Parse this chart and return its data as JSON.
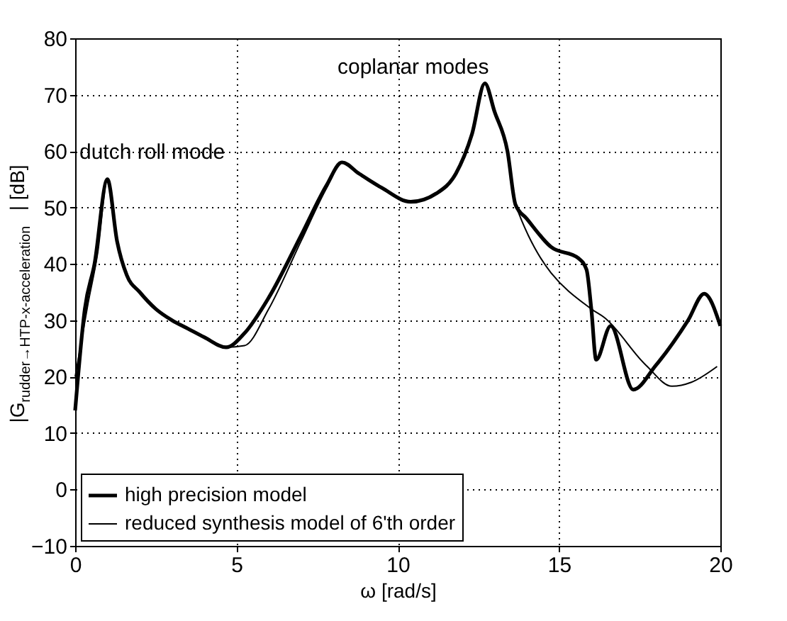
{
  "chart_data": {
    "type": "line",
    "xlabel": "ω [rad/s]",
    "ylabel": "|G$_{rudder→HTP-x-acceleration}$| [dB]",
    "xlim": [
      0,
      20
    ],
    "xticks": [
      0,
      5,
      10,
      15,
      20
    ],
    "ylim": [
      -10,
      80
    ],
    "yticks": [
      -10,
      0,
      10,
      20,
      30,
      40,
      50,
      60,
      70,
      80
    ],
    "grid": true,
    "legend": "bottom left",
    "line_style": "solid",
    "marker": "none",
    "annotations": [
      "dutch roll mode",
      "coplanar modes"
    ],
    "series": [
      {
        "name": "high precision model",
        "color": "#000000",
        "x": [
          0,
          0.3,
          0.6,
          1.0,
          1.3,
          1.6,
          2.0,
          2.5,
          3.0,
          3.5,
          4.0,
          4.68,
          5.25,
          6.0,
          7.0,
          7.8,
          8.27,
          8.8,
          9.5,
          10.4,
          11.2,
          11.8,
          12.3,
          12.7,
          13.0,
          13.4,
          13.65,
          14.0,
          14.75,
          15.6,
          15.85,
          16.0,
          16.15,
          16.6,
          17.3,
          18.0,
          19.0,
          19.5,
          20.0
        ],
        "values": [
          14,
          32,
          40,
          55,
          44,
          38,
          35,
          32,
          30,
          28.5,
          27,
          25.2,
          27.7,
          34,
          45,
          54,
          58,
          56,
          53.5,
          51,
          52.5,
          56,
          63,
          72,
          67,
          60,
          50.5,
          48,
          43,
          41,
          39,
          32,
          23,
          29,
          17.7,
          22,
          30,
          34.7,
          29
        ]
      },
      {
        "name": "reduced synthesis model of 6'th order",
        "color": "#000000",
        "x": [
          0,
          0.4,
          0.7,
          1.0,
          1.3,
          1.6,
          2.0,
          2.5,
          3.0,
          3.5,
          4.0,
          4.68,
          5.25,
          6.0,
          7.0,
          7.8,
          8.27,
          8.8,
          9.5,
          10.4,
          11.2,
          11.8,
          12.3,
          12.7,
          13.0,
          13.4,
          13.65,
          16.0,
          16.4,
          17.7,
          18.5,
          19.1,
          19.9
        ],
        "values": [
          20,
          33,
          42,
          55,
          44,
          38,
          35,
          32,
          30,
          28.5,
          27,
          25.2,
          25.5,
          32,
          44,
          53.5,
          58,
          56,
          53.5,
          51,
          52.5,
          56,
          63,
          72,
          67,
          60,
          50.5,
          32,
          30.5,
          22,
          18.3,
          19,
          21.8
        ]
      }
    ]
  }
}
